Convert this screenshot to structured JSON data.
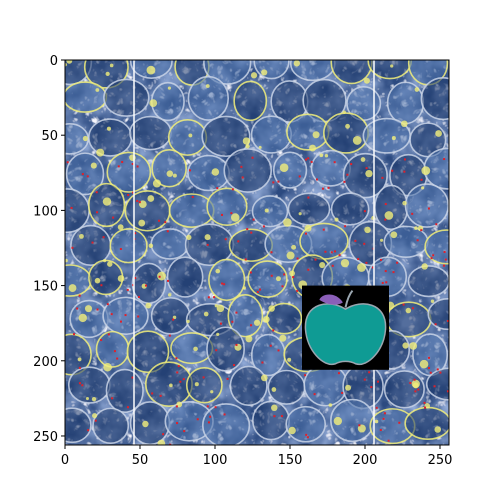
{
  "axes": {
    "xticks": [
      "0",
      "50",
      "100",
      "150",
      "200",
      "250"
    ],
    "yticks": [
      "0",
      "50",
      "100",
      "150",
      "200",
      "250"
    ],
    "xlim": [
      0,
      256
    ],
    "ylim": [
      256,
      0
    ],
    "tick_values": [
      0,
      50,
      100,
      150,
      200,
      250
    ]
  },
  "image": {
    "description_icon": "apple-icon",
    "palette": {
      "dark": "#1f3a6b",
      "mid": "#4b6fa8",
      "light": "#c9d4e6",
      "highlight": "#f2ef7a",
      "speck": "#e0202a",
      "apple_body": "#0f9b94",
      "apple_leaf": "#8b5fb8",
      "apple_bg": "#000000"
    },
    "apple_patch": {
      "x0": 158,
      "x1": 216,
      "y0": 150,
      "y1": 206
    },
    "vertical_lines_x": [
      46,
      206
    ]
  }
}
